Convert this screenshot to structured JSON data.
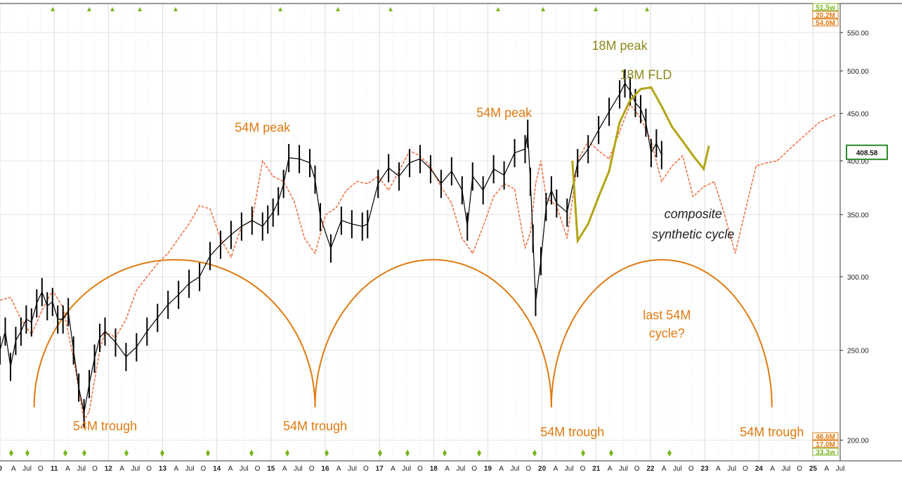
{
  "chart_data": {
    "type": "line",
    "title": "",
    "xlabel": "",
    "ylabel": "",
    "y_scale": "log",
    "ylim": [
      190,
      590
    ],
    "y_ticks": [
      "200.00",
      "250.00",
      "300.00",
      "350.00",
      "400.00",
      "450.00",
      "500.00",
      "550.00"
    ],
    "x_tick_labels": [
      "0",
      "A",
      "Jul",
      "O",
      "11",
      "A",
      "Jul",
      "O",
      "12",
      "A",
      "Jul",
      "O",
      "13",
      "A",
      "Jul",
      "O",
      "14",
      "A",
      "Jul",
      "O",
      "15",
      "A",
      "Jul",
      "O",
      "16",
      "A",
      "Jul",
      "O",
      "17",
      "A",
      "Jul",
      "O",
      "18",
      "A",
      "Jul",
      "O",
      "19",
      "A",
      "Jul",
      "O",
      "20",
      "A",
      "Jul",
      "O",
      "21",
      "A",
      "Jul",
      "O",
      "22",
      "A",
      "Jul",
      "O",
      "23",
      "A",
      "Jul",
      "O",
      "24",
      "A",
      "Jul",
      "O",
      "25",
      "A",
      "Jul"
    ],
    "x_range": [
      2010.0,
      2026.0
    ],
    "current_price": "408.58",
    "colors": {
      "price": "#000000",
      "composite": "#f0744a",
      "fld": "#b2a514",
      "cycle": "#e07a10",
      "annotation_orange": "#e07a10",
      "annotation_olive": "#8e8a1c",
      "annotation_dark": "#222222",
      "badge_green": "#7ab51d",
      "badge_orange": "#e07a10"
    },
    "annotations": [
      {
        "key": "peak54a",
        "text": "54M peak",
        "x": 2015.0,
        "y": 430,
        "color": "orange"
      },
      {
        "key": "peak54b",
        "text": "54M peak",
        "x": 2019.6,
        "y": 446,
        "color": "orange"
      },
      {
        "key": "peak18",
        "text": "18M peak",
        "x": 2021.8,
        "y": 527,
        "color": "olive"
      },
      {
        "key": "fld18",
        "text": "18M FLD",
        "x": 2022.3,
        "y": 490,
        "color": "olive"
      },
      {
        "key": "composite1",
        "text": "composite",
        "x": 2023.2,
        "y": 347,
        "color": "dark",
        "italic": true
      },
      {
        "key": "composite2",
        "text": "synthetic cycle",
        "x": 2023.2,
        "y": 330,
        "color": "dark",
        "italic": true
      },
      {
        "key": "last1",
        "text": "last 54M",
        "x": 2022.7,
        "y": 270,
        "color": "orange"
      },
      {
        "key": "last2",
        "text": "cycle?",
        "x": 2022.7,
        "y": 258,
        "color": "orange"
      },
      {
        "key": "trough1",
        "text": "54M trough",
        "x": 2012.0,
        "y": 205,
        "color": "orange"
      },
      {
        "key": "trough2",
        "text": "54M trough",
        "x": 2016.0,
        "y": 205,
        "color": "orange"
      },
      {
        "key": "trough3",
        "text": "54M trough",
        "x": 2020.9,
        "y": 202,
        "color": "orange"
      },
      {
        "key": "trough4",
        "text": "54M trough",
        "x": 2024.7,
        "y": 202,
        "color": "orange"
      }
    ],
    "cycle_arcs": [
      {
        "x_start": 2010.65,
        "x_end": 2016.0,
        "peak": 313
      },
      {
        "x_start": 2016.0,
        "x_end": 2020.5,
        "peak": 313
      },
      {
        "x_start": 2020.5,
        "x_end": 2024.7,
        "peak": 313
      }
    ],
    "cycle_base": 217,
    "price_series": {
      "name": "",
      "x": [
        2010.0,
        2010.1,
        2010.2,
        2010.3,
        2010.4,
        2010.5,
        2010.6,
        2010.7,
        2010.8,
        2010.9,
        2011.0,
        2011.1,
        2011.2,
        2011.3,
        2011.4,
        2011.5,
        2011.6,
        2011.7,
        2011.8,
        2011.9,
        2012.0,
        2012.2,
        2012.4,
        2012.6,
        2012.8,
        2013.0,
        2013.2,
        2013.4,
        2013.6,
        2013.8,
        2014.0,
        2014.2,
        2014.4,
        2014.6,
        2014.8,
        2015.0,
        2015.1,
        2015.2,
        2015.3,
        2015.4,
        2015.5,
        2015.7,
        2015.9,
        2016.0,
        2016.1,
        2016.3,
        2016.5,
        2016.7,
        2016.9,
        2017.0,
        2017.2,
        2017.4,
        2017.6,
        2017.8,
        2018.0,
        2018.2,
        2018.4,
        2018.6,
        2018.8,
        2018.9,
        2019.0,
        2019.2,
        2019.4,
        2019.6,
        2019.8,
        2020.0,
        2020.05,
        2020.1,
        2020.15,
        2020.2,
        2020.3,
        2020.4,
        2020.5,
        2020.6,
        2020.8,
        2021.0,
        2021.2,
        2021.4,
        2021.6,
        2021.8,
        2021.9,
        2022.0,
        2022.1,
        2022.2,
        2022.3,
        2022.4,
        2022.5,
        2022.6
      ],
      "values": [
        250,
        262,
        240,
        256,
        262,
        270,
        268,
        281,
        289,
        279,
        282,
        270,
        270,
        275,
        250,
        228,
        214,
        230,
        245,
        258,
        262,
        255,
        246,
        252,
        262,
        271,
        280,
        287,
        295,
        300,
        316,
        325,
        333,
        340,
        345,
        340,
        346,
        352,
        362,
        378,
        403,
        402,
        398,
        382,
        348,
        322,
        345,
        342,
        340,
        342,
        378,
        393,
        385,
        398,
        402,
        392,
        378,
        390,
        372,
        340,
        385,
        372,
        392,
        386,
        408,
        412,
        428,
        380,
        330,
        282,
        312,
        357,
        372,
        360,
        352,
        398,
        412,
        432,
        452,
        472,
        485,
        476,
        462,
        455,
        440,
        408,
        418,
        406
      ]
    },
    "composite_series": {
      "name": "",
      "x": [
        2010.0,
        2010.2,
        2010.4,
        2010.6,
        2010.8,
        2011.0,
        2011.2,
        2011.4,
        2011.6,
        2011.7,
        2011.8,
        2011.9,
        2012.0,
        2012.2,
        2012.4,
        2012.6,
        2012.8,
        2013.0,
        2013.2,
        2013.4,
        2013.6,
        2013.8,
        2014.0,
        2014.2,
        2014.4,
        2014.6,
        2014.8,
        2015.0,
        2015.2,
        2015.4,
        2015.6,
        2015.8,
        2016.0,
        2016.2,
        2016.4,
        2016.6,
        2016.8,
        2017.0,
        2017.2,
        2017.4,
        2017.6,
        2017.8,
        2018.0,
        2018.2,
        2018.4,
        2018.6,
        2018.8,
        2019.0,
        2019.2,
        2019.4,
        2019.6,
        2019.8,
        2020.0,
        2020.1,
        2020.2,
        2020.3,
        2020.4,
        2020.6,
        2020.8,
        2021.0,
        2021.2,
        2021.4,
        2021.6,
        2021.8,
        2022.0,
        2022.2,
        2022.4,
        2022.6,
        2022.8,
        2023.0,
        2023.2,
        2023.4,
        2023.6,
        2023.8,
        2024.0,
        2024.2,
        2024.4,
        2024.6,
        2024.8,
        2025.0,
        2025.2,
        2025.4,
        2025.6,
        2025.9
      ],
      "values": [
        283,
        285,
        270,
        260,
        276,
        290,
        278,
        245,
        210,
        215,
        232,
        250,
        262,
        258,
        270,
        290,
        300,
        310,
        318,
        330,
        342,
        358,
        355,
        330,
        315,
        340,
        345,
        400,
        385,
        380,
        362,
        330,
        318,
        350,
        356,
        372,
        380,
        378,
        385,
        372,
        390,
        410,
        405,
        394,
        375,
        360,
        330,
        318,
        340,
        366,
        378,
        373,
        322,
        335,
        378,
        400,
        365,
        358,
        330,
        400,
        420,
        410,
        402,
        430,
        460,
        445,
        420,
        380,
        395,
        405,
        366,
        375,
        380,
        350,
        318,
        355,
        395,
        398,
        400,
        410,
        420,
        430,
        440,
        448
      ]
    },
    "fld_series": {
      "name": "",
      "x": [
        2020.9,
        2021.0,
        2021.2,
        2021.4,
        2021.6,
        2021.8,
        2022.0,
        2022.2,
        2022.4,
        2022.6,
        2022.8,
        2023.0,
        2023.2,
        2023.4,
        2023.5
      ],
      "values": [
        400,
        328,
        342,
        366,
        390,
        440,
        465,
        478,
        480,
        458,
        435,
        420,
        405,
        392,
        415
      ]
    },
    "cycle_badges_top": [
      "51.5w",
      "20.2M",
      "54.0M"
    ],
    "cycle_badges_bottom": [
      "46.6M",
      "17.0M",
      "33.3w"
    ]
  }
}
